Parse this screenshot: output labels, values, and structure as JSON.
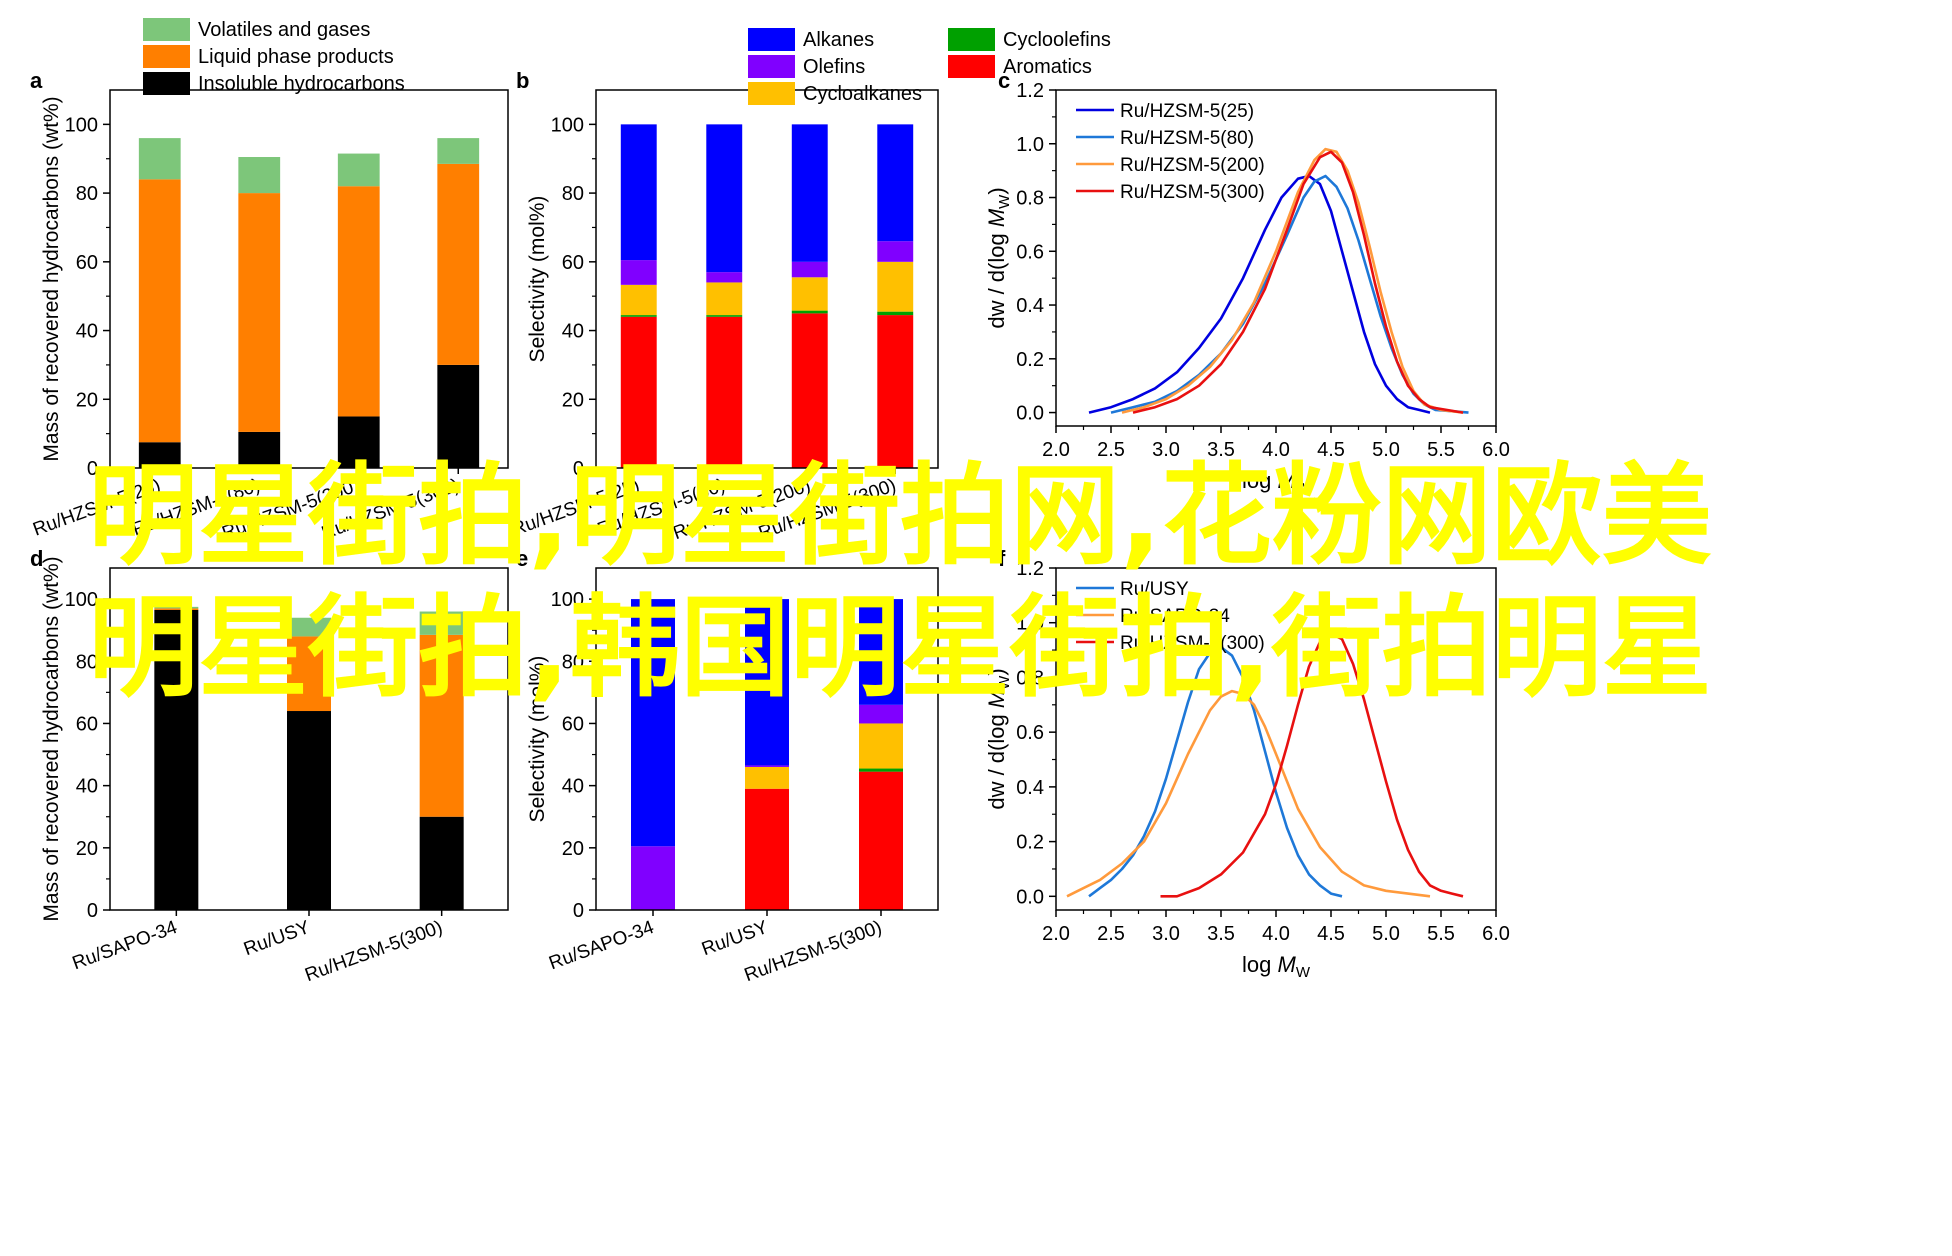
{
  "overlay_text": "明星街拍,明星街拍网,花粉网欧美明星街拍,韩国明星街拍,街拍明星",
  "colors": {
    "volatiles": "#7dc67a",
    "liquid": "#ff7f00",
    "insoluble": "#000000",
    "alkanes": "#0000ff",
    "olefins": "#8000ff",
    "cycloalkanes": "#ffc000",
    "cycloolefins": "#00a000",
    "aromatics": "#ff0000",
    "zsm25": "#0000e0",
    "zsm80": "#1e78d8",
    "zsm200": "#ff9a3c",
    "zsm300": "#e81010",
    "usy": "#1e78d8",
    "sapo": "#ff9a3c"
  },
  "chart_data": [
    {
      "id": "a",
      "panel_label": "a",
      "type": "bar",
      "stacked": true,
      "ylabel": "Mass of recovered hydrocarbons (wt%)",
      "ylim": [
        0,
        110
      ],
      "yticks": [
        0,
        20,
        40,
        60,
        80,
        100
      ],
      "categories": [
        "Ru/HZSM-5(25)",
        "Ru/HZSM-5(80)",
        "Ru/HZSM-5(200)",
        "Ru/HZSM-5(300)"
      ],
      "series": [
        {
          "name": "Insoluble hydrocarbons",
          "color_key": "insoluble",
          "values": [
            7.5,
            10.5,
            15,
            30
          ]
        },
        {
          "name": "Liquid phase products",
          "color_key": "liquid",
          "values": [
            76.5,
            69.5,
            67,
            58.5
          ]
        },
        {
          "name": "Volatiles and gases",
          "color_key": "volatiles",
          "values": [
            12,
            10.5,
            9.5,
            7.5
          ]
        }
      ],
      "legend_order": [
        2,
        1,
        0
      ],
      "legend": "top"
    },
    {
      "id": "b",
      "panel_label": "b",
      "type": "bar",
      "stacked": true,
      "ylabel": "Selectivity (mol%)",
      "ylim": [
        0,
        110
      ],
      "yticks": [
        0,
        20,
        40,
        60,
        80,
        100
      ],
      "categories": [
        "Ru/HZSM-5(25)",
        "Ru/HZSM-5(80)",
        "Ru/HZSM-5(200)",
        "Ru/HZSM-5(300)"
      ],
      "series": [
        {
          "name": "Aromatics",
          "color_key": "aromatics",
          "values": [
            44,
            44,
            45,
            44.5
          ]
        },
        {
          "name": "Cycloolefins",
          "color_key": "cycloolefins",
          "values": [
            0.5,
            0.5,
            0.8,
            1
          ]
        },
        {
          "name": "Cycloalkanes",
          "color_key": "cycloalkanes",
          "values": [
            8.8,
            9.5,
            9.7,
            14.5
          ]
        },
        {
          "name": "Olefins",
          "color_key": "olefins",
          "values": [
            7.2,
            3,
            4.5,
            6
          ]
        },
        {
          "name": "Alkanes",
          "color_key": "alkanes",
          "values": [
            39.5,
            43,
            40,
            34
          ]
        }
      ],
      "legend_order": [
        4,
        1,
        3,
        0,
        2
      ],
      "legend": "top"
    },
    {
      "id": "c",
      "panel_label": "c",
      "type": "line",
      "xlabel": "log M",
      "xlabel_sub": "W",
      "ylabel": "dw / d(log M",
      "ylabel_sub": "W",
      "ylabel_end": ")",
      "xlim": [
        2.0,
        6.0
      ],
      "ylim": [
        -0.05,
        1.2
      ],
      "xticks": [
        2.0,
        2.5,
        3.0,
        3.5,
        4.0,
        4.5,
        5.0,
        5.5,
        6.0
      ],
      "yticks": [
        0.0,
        0.2,
        0.4,
        0.6,
        0.8,
        1.0,
        1.2
      ],
      "series": [
        {
          "name": "Ru/HZSM-5(25)",
          "color_key": "zsm25",
          "x": [
            2.3,
            2.5,
            2.7,
            2.9,
            3.1,
            3.3,
            3.5,
            3.7,
            3.9,
            4.05,
            4.2,
            4.3,
            4.4,
            4.5,
            4.6,
            4.7,
            4.8,
            4.9,
            5.0,
            5.1,
            5.2,
            5.3,
            5.4
          ],
          "y": [
            0.0,
            0.02,
            0.05,
            0.09,
            0.15,
            0.24,
            0.35,
            0.5,
            0.68,
            0.8,
            0.87,
            0.88,
            0.85,
            0.75,
            0.6,
            0.45,
            0.3,
            0.18,
            0.1,
            0.05,
            0.02,
            0.01,
            0.0
          ]
        },
        {
          "name": "Ru/HZSM-5(80)",
          "color_key": "zsm80",
          "x": [
            2.5,
            2.7,
            2.9,
            3.1,
            3.3,
            3.5,
            3.7,
            3.9,
            4.1,
            4.25,
            4.35,
            4.45,
            4.55,
            4.65,
            4.75,
            4.85,
            4.95,
            5.05,
            5.15,
            5.25,
            5.35,
            5.45,
            5.6,
            5.75
          ],
          "y": [
            0.0,
            0.02,
            0.04,
            0.08,
            0.14,
            0.22,
            0.33,
            0.48,
            0.66,
            0.8,
            0.86,
            0.88,
            0.84,
            0.76,
            0.64,
            0.5,
            0.36,
            0.24,
            0.14,
            0.07,
            0.03,
            0.01,
            0.005,
            0.0
          ]
        },
        {
          "name": "Ru/HZSM-5(200)",
          "color_key": "zsm200",
          "x": [
            2.6,
            2.8,
            3.0,
            3.2,
            3.4,
            3.6,
            3.8,
            4.0,
            4.2,
            4.35,
            4.45,
            4.55,
            4.65,
            4.75,
            4.85,
            4.95,
            5.05,
            5.15,
            5.25,
            5.35,
            5.5,
            5.7
          ],
          "y": [
            0.0,
            0.02,
            0.05,
            0.1,
            0.17,
            0.27,
            0.41,
            0.6,
            0.82,
            0.94,
            0.98,
            0.97,
            0.9,
            0.78,
            0.62,
            0.45,
            0.3,
            0.17,
            0.08,
            0.03,
            0.01,
            0.0
          ]
        },
        {
          "name": "Ru/HZSM-5(300)",
          "color_key": "zsm300",
          "x": [
            2.7,
            2.9,
            3.1,
            3.3,
            3.5,
            3.7,
            3.9,
            4.1,
            4.25,
            4.4,
            4.5,
            4.6,
            4.7,
            4.8,
            4.9,
            5.0,
            5.1,
            5.2,
            5.3,
            5.4,
            5.55,
            5.7
          ],
          "y": [
            0.0,
            0.02,
            0.05,
            0.1,
            0.18,
            0.3,
            0.46,
            0.68,
            0.85,
            0.95,
            0.97,
            0.93,
            0.82,
            0.66,
            0.48,
            0.32,
            0.19,
            0.1,
            0.05,
            0.02,
            0.01,
            0.0
          ]
        }
      ],
      "legend": "top-left"
    },
    {
      "id": "d",
      "panel_label": "d",
      "type": "bar",
      "stacked": true,
      "ylabel": "Mass of recovered hydrocarbons (wt%)",
      "ylim": [
        0,
        110
      ],
      "yticks": [
        0,
        20,
        40,
        60,
        80,
        100
      ],
      "categories": [
        "Ru/SAPO-34",
        "Ru/USY",
        "Ru/HZSM-5(300)"
      ],
      "series": [
        {
          "name": "Insoluble hydrocarbons",
          "color_key": "insoluble",
          "values": [
            96.5,
            64,
            30
          ]
        },
        {
          "name": "Liquid phase products",
          "color_key": "liquid",
          "values": [
            0.5,
            24,
            58.5
          ]
        },
        {
          "name": "Volatiles and gases",
          "color_key": "volatiles",
          "values": [
            0.5,
            6,
            7.5
          ]
        }
      ]
    },
    {
      "id": "e",
      "panel_label": "e",
      "type": "bar",
      "stacked": true,
      "ylabel": "Selectivity (mol%)",
      "ylim": [
        0,
        110
      ],
      "yticks": [
        0,
        20,
        40,
        60,
        80,
        100
      ],
      "categories": [
        "Ru/SAPO-34",
        "Ru/USY",
        "Ru/HZSM-5(300)"
      ],
      "series": [
        {
          "name": "Aromatics",
          "color_key": "aromatics",
          "values": [
            0,
            39,
            44.5
          ]
        },
        {
          "name": "Cycloolefins",
          "color_key": "cycloolefins",
          "values": [
            0,
            0,
            1
          ]
        },
        {
          "name": "Cycloalkanes",
          "color_key": "cycloalkanes",
          "values": [
            0,
            7,
            14.5
          ]
        },
        {
          "name": "Olefins",
          "color_key": "olefins",
          "values": [
            20.5,
            0.5,
            6
          ]
        },
        {
          "name": "Alkanes",
          "color_key": "alkanes",
          "values": [
            79.5,
            53.5,
            34
          ]
        }
      ]
    },
    {
      "id": "f",
      "panel_label": "f",
      "type": "line",
      "xlabel": "log M",
      "xlabel_sub": "W",
      "ylabel": "dw / d(log M",
      "ylabel_sub": "W",
      "ylabel_end": ")",
      "xlim": [
        2.0,
        6.0
      ],
      "ylim": [
        -0.05,
        1.2
      ],
      "xticks": [
        2.0,
        2.5,
        3.0,
        3.5,
        4.0,
        4.5,
        5.0,
        5.5,
        6.0
      ],
      "yticks": [
        0.0,
        0.2,
        0.4,
        0.6,
        0.8,
        1.0,
        1.2
      ],
      "series": [
        {
          "name": "Ru/USY",
          "color_key": "usy",
          "x": [
            2.3,
            2.4,
            2.5,
            2.6,
            2.7,
            2.8,
            2.9,
            3.0,
            3.1,
            3.2,
            3.3,
            3.4,
            3.5,
            3.6,
            3.7,
            3.8,
            3.9,
            4.0,
            4.1,
            4.2,
            4.3,
            4.4,
            4.5,
            4.6
          ],
          "y": [
            0.0,
            0.03,
            0.06,
            0.1,
            0.15,
            0.22,
            0.31,
            0.43,
            0.57,
            0.71,
            0.83,
            0.89,
            0.91,
            0.88,
            0.8,
            0.68,
            0.53,
            0.38,
            0.25,
            0.15,
            0.08,
            0.04,
            0.01,
            0.0
          ]
        },
        {
          "name": "Ru/SAPO-34",
          "color_key": "sapo",
          "x": [
            2.1,
            2.2,
            2.4,
            2.6,
            2.8,
            3.0,
            3.2,
            3.4,
            3.5,
            3.6,
            3.7,
            3.8,
            3.9,
            4.0,
            4.1,
            4.2,
            4.4,
            4.6,
            4.8,
            5.0,
            5.2,
            5.4
          ],
          "y": [
            0.0,
            0.02,
            0.06,
            0.12,
            0.2,
            0.34,
            0.52,
            0.68,
            0.73,
            0.75,
            0.74,
            0.7,
            0.62,
            0.52,
            0.42,
            0.32,
            0.18,
            0.09,
            0.04,
            0.02,
            0.01,
            0.0
          ]
        },
        {
          "name": "Ru/HZSM-5(300)",
          "color_key": "zsm300",
          "x": [
            2.95,
            3.1,
            3.3,
            3.5,
            3.7,
            3.9,
            4.0,
            4.1,
            4.2,
            4.3,
            4.4,
            4.5,
            4.6,
            4.7,
            4.8,
            4.9,
            5.0,
            5.1,
            5.2,
            5.3,
            5.4,
            5.5,
            5.6,
            5.7
          ],
          "y": [
            0.0,
            0.0,
            0.03,
            0.08,
            0.16,
            0.3,
            0.41,
            0.55,
            0.7,
            0.84,
            0.93,
            0.96,
            0.94,
            0.85,
            0.72,
            0.57,
            0.42,
            0.28,
            0.17,
            0.09,
            0.04,
            0.02,
            0.01,
            0.0
          ]
        }
      ],
      "legend": "top-left"
    }
  ]
}
